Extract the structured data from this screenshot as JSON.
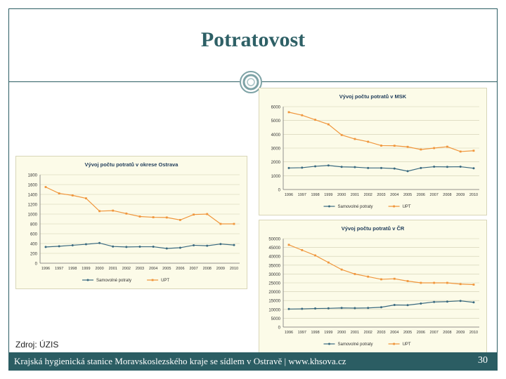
{
  "slide": {
    "title": "Potratovost",
    "source": "Zdroj: ÚZIS",
    "footer": "Krajská hygienická stanice Moravskoslezského kraje se sídlem v Ostravě | www.khsova.cz",
    "page_number": "30"
  },
  "colors": {
    "accent": "#2b5d63",
    "spontaneous": "#3a6a80",
    "induced": "#f0963c",
    "plot_bg": "#fcfbe8"
  },
  "chart_data": [
    {
      "type": "line",
      "title": "Vývoj počtu potratů v okrese Ostrava",
      "categories": [
        "1996",
        "1997",
        "1998",
        "1999",
        "2000",
        "2001",
        "2002",
        "2003",
        "2004",
        "2005",
        "2006",
        "2007",
        "2008",
        "2009",
        "2010"
      ],
      "yticks": [
        0,
        200,
        400,
        600,
        800,
        1000,
        1200,
        1400,
        1600,
        1800
      ],
      "ylim": [
        0,
        1800
      ],
      "series": [
        {
          "name": "Samovolné potraty",
          "values": [
            330,
            345,
            365,
            385,
            410,
            340,
            330,
            335,
            335,
            300,
            315,
            365,
            355,
            390,
            370
          ]
        },
        {
          "name": "UPT",
          "values": [
            1550,
            1420,
            1380,
            1320,
            1060,
            1070,
            1010,
            950,
            935,
            930,
            880,
            990,
            1000,
            800,
            800
          ]
        }
      ],
      "legend": "bottom"
    },
    {
      "type": "line",
      "title": "Vývoj počtu potratů v MSK",
      "categories": [
        "1996",
        "1997",
        "1998",
        "1999",
        "2000",
        "2001",
        "2002",
        "2003",
        "2004",
        "2005",
        "2006",
        "2007",
        "2008",
        "2009",
        "2010"
      ],
      "yticks": [
        0,
        1000,
        2000,
        3000,
        4000,
        5000,
        6000
      ],
      "ylim": [
        0,
        6000
      ],
      "series": [
        {
          "name": "Samovolné potraty",
          "values": [
            1560,
            1580,
            1680,
            1740,
            1640,
            1620,
            1560,
            1560,
            1520,
            1330,
            1560,
            1650,
            1640,
            1650,
            1540
          ]
        },
        {
          "name": "UPT",
          "values": [
            5600,
            5380,
            5050,
            4720,
            3950,
            3660,
            3460,
            3180,
            3170,
            3090,
            2900,
            3000,
            3100,
            2750,
            2810
          ]
        }
      ],
      "legend": "bottom"
    },
    {
      "type": "line",
      "title": "Vývoj počtu potratů v ČR",
      "categories": [
        "1996",
        "1997",
        "1998",
        "1999",
        "2000",
        "2001",
        "2002",
        "2003",
        "2004",
        "2005",
        "2006",
        "2007",
        "2008",
        "2009",
        "2010"
      ],
      "yticks": [
        0,
        5000,
        10000,
        15000,
        20000,
        25000,
        30000,
        35000,
        40000,
        45000,
        50000
      ],
      "ylim": [
        0,
        50000
      ],
      "series": [
        {
          "name": "Samovolné potraty",
          "values": [
            10200,
            10300,
            10500,
            10600,
            10800,
            10700,
            10800,
            11200,
            12500,
            12400,
            13300,
            14200,
            14400,
            14800,
            14000
          ]
        },
        {
          "name": "UPT",
          "values": [
            46500,
            43500,
            40500,
            36500,
            32500,
            30000,
            28500,
            27000,
            27300,
            26000,
            25000,
            25000,
            25000,
            24300,
            24000
          ]
        }
      ],
      "legend": "bottom"
    }
  ]
}
